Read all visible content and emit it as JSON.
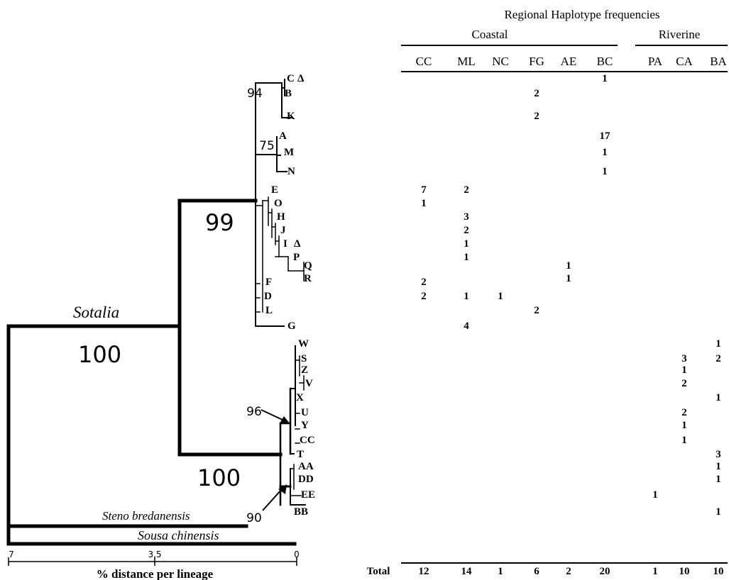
{
  "table": {
    "title": "Regional Haplotype frequencies",
    "group_coastal": "Coastal",
    "group_riverine": "Riverine",
    "columns": [
      "CC",
      "ML",
      "NC",
      "FG",
      "AE",
      "BC",
      "PA",
      "CA",
      "BA"
    ],
    "total_label": "Total",
    "totals": [
      "12",
      "14",
      "1",
      "6",
      "2",
      "20",
      "1",
      "10",
      "10"
    ]
  },
  "tree": {
    "clade_label": "Sotalia",
    "bootstrap": {
      "root": "100",
      "clade_upper": "99",
      "clade_lower": "100",
      "node_cb": "94",
      "node_amn": "75",
      "node_96": "96",
      "node_90": "90"
    },
    "outgroups": {
      "steno": "Steno bredanensis",
      "sousa": "Sousa chinensis"
    },
    "scale": {
      "ticks": [
        "7",
        "3.5",
        "0"
      ],
      "label": "% distance per lineage"
    }
  },
  "rows": [
    {
      "tip": "C",
      "tip_symbol": "Δ",
      "counts": [
        "",
        "",
        "",
        "",
        "",
        "1",
        "",
        "",
        ""
      ]
    },
    {
      "tip": "B",
      "counts": [
        "",
        "",
        "",
        "2",
        "",
        "",
        "",
        "",
        ""
      ]
    },
    {
      "tip": "K",
      "counts": [
        "",
        "",
        "",
        "2",
        "",
        "",
        "",
        "",
        ""
      ]
    },
    {
      "tip": "A",
      "counts": [
        "",
        "",
        "",
        "",
        "",
        "17",
        "",
        "",
        ""
      ]
    },
    {
      "tip": "M",
      "counts": [
        "",
        "",
        "",
        "",
        "",
        "1",
        "",
        "",
        ""
      ]
    },
    {
      "tip": "N",
      "counts": [
        "",
        "",
        "",
        "",
        "",
        "1",
        "",
        "",
        ""
      ]
    },
    {
      "tip": "E",
      "counts": [
        "7",
        "2",
        "",
        "",
        "",
        "",
        "",
        "",
        ""
      ]
    },
    {
      "tip": "O",
      "counts": [
        "1",
        "",
        "",
        "",
        "",
        "",
        "",
        "",
        ""
      ]
    },
    {
      "tip": "H",
      "counts": [
        "",
        "3",
        "",
        "",
        "",
        "",
        "",
        "",
        ""
      ]
    },
    {
      "tip": "J",
      "counts": [
        "",
        "2",
        "",
        "",
        "",
        "",
        "",
        "",
        ""
      ]
    },
    {
      "tip": "I",
      "tip_symbol": "Δ",
      "counts": [
        "",
        "1",
        "",
        "",
        "",
        "",
        "",
        "",
        ""
      ]
    },
    {
      "tip": "P",
      "counts": [
        "",
        "1",
        "",
        "",
        "",
        "",
        "",
        "",
        ""
      ]
    },
    {
      "tip": "Q",
      "counts": [
        "",
        "",
        "",
        "",
        "1",
        "",
        "",
        "",
        ""
      ]
    },
    {
      "tip": "R",
      "counts": [
        "",
        "",
        "",
        "",
        "1",
        "",
        "",
        "",
        ""
      ]
    },
    {
      "tip": "F",
      "counts": [
        "2",
        "",
        "",
        "",
        "",
        "",
        "",
        "",
        ""
      ]
    },
    {
      "tip": "D",
      "counts": [
        "2",
        "1",
        "1",
        "",
        "",
        "",
        "",
        "",
        ""
      ]
    },
    {
      "tip": "L",
      "counts": [
        "",
        "",
        "",
        "2",
        "",
        "",
        "",
        "",
        ""
      ]
    },
    {
      "tip": "G",
      "counts": [
        "",
        "4",
        "",
        "",
        "",
        "",
        "",
        "",
        ""
      ]
    },
    {
      "tip": "W",
      "counts": [
        "",
        "",
        "",
        "",
        "",
        "",
        "",
        "",
        "1"
      ]
    },
    {
      "tip": "S",
      "counts": [
        "",
        "",
        "",
        "",
        "",
        "",
        "",
        "3",
        "2"
      ]
    },
    {
      "tip": "Z",
      "counts": [
        "",
        "",
        "",
        "",
        "",
        "",
        "",
        "1",
        ""
      ]
    },
    {
      "tip": "V",
      "counts": [
        "",
        "",
        "",
        "",
        "",
        "",
        "",
        "2",
        ""
      ]
    },
    {
      "tip": "X",
      "counts": [
        "",
        "",
        "",
        "",
        "",
        "",
        "",
        "",
        "1"
      ]
    },
    {
      "tip": "U",
      "counts": [
        "",
        "",
        "",
        "",
        "",
        "",
        "",
        "2",
        ""
      ]
    },
    {
      "tip": "Y",
      "counts": [
        "",
        "",
        "",
        "",
        "",
        "",
        "",
        "1",
        ""
      ]
    },
    {
      "tip": "CC",
      "counts": [
        "",
        "",
        "",
        "",
        "",
        "",
        "",
        "1",
        ""
      ]
    },
    {
      "tip": "T",
      "counts": [
        "",
        "",
        "",
        "",
        "",
        "",
        "",
        "",
        "3"
      ]
    },
    {
      "tip": "AA",
      "counts": [
        "",
        "",
        "",
        "",
        "",
        "",
        "",
        "",
        "1"
      ]
    },
    {
      "tip": "DD",
      "counts": [
        "",
        "",
        "",
        "",
        "",
        "",
        "",
        "",
        "1"
      ]
    },
    {
      "tip": "EE",
      "counts": [
        "",
        "",
        "",
        "",
        "",
        "",
        "1",
        "",
        ""
      ]
    },
    {
      "tip": "BB",
      "counts": [
        "",
        "",
        "",
        "",
        "",
        "",
        "",
        "",
        "1"
      ]
    }
  ]
}
